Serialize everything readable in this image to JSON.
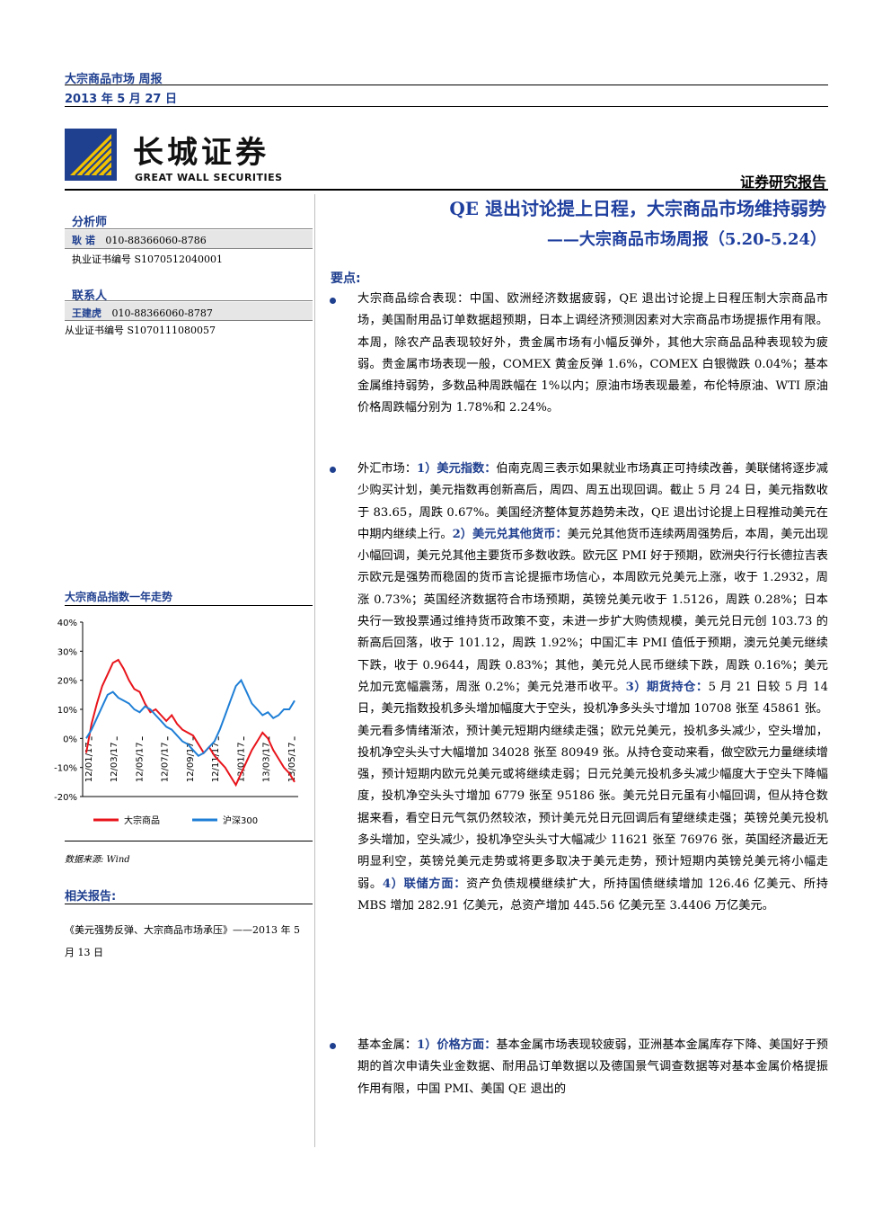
{
  "header": {
    "title": "大宗商品市场  周报",
    "date": "2013 年 5 月 27 日"
  },
  "logo": {
    "cn": "长城证券",
    "en": "GREAT WALL SECURITIES"
  },
  "report_type": "证券研究报告",
  "title": {
    "main": "QE 退出讨论提上日程，大宗商品市场维持弱势",
    "sub": "——大宗商品市场周报（5.20-5.24）"
  },
  "sidebar": {
    "analyst_label": "分析师",
    "analyst_name": "耿  诺",
    "analyst_phone": "010-88366060-8786",
    "analyst_cert": "执业证书编号 S1070512040001",
    "contact_label": "联系人",
    "contact_name": "王建虎",
    "contact_phone": "010-88366060-8787",
    "contact_cert": "从业证书编号 S1070111080057",
    "chart_title": "大宗商品指数一年走势",
    "data_source": "数据来源: Wind",
    "related_label": "相关报告:",
    "related_text": "《美元强势反弹、大宗商品市场承压》——2013 年 5 月 13 日"
  },
  "chart_data": {
    "type": "line",
    "title": "大宗商品指数一年走势",
    "x_ticks": [
      "12/01/17",
      "12/03/17",
      "12/05/17",
      "12/07/17",
      "12/09/17",
      "12/11/17",
      "13/01/17",
      "13/03/17",
      "13/05/17"
    ],
    "y_ticks": [
      "40%",
      "30%",
      "20%",
      "10%",
      "0%",
      "-10%",
      "-20%"
    ],
    "ylim": [
      -20,
      40
    ],
    "legend_position": "bottom",
    "series": [
      {
        "name": "大宗商品",
        "color": "#e8141b",
        "values": [
          -5,
          5,
          12,
          18,
          22,
          26,
          27,
          24,
          20,
          17,
          16,
          12,
          9,
          10,
          8,
          6,
          8,
          5,
          3,
          2,
          1,
          -2,
          -5,
          -3,
          -6,
          -8,
          -10,
          -13,
          -16,
          -12,
          -8,
          -4,
          -1,
          2,
          0,
          -4,
          -7,
          -10,
          -12,
          -15
        ]
      },
      {
        "name": "沪深300",
        "color": "#1f7fd6",
        "values": [
          0,
          3,
          7,
          11,
          15,
          16,
          14,
          13,
          12,
          10,
          9,
          11,
          10,
          8,
          6,
          4,
          3,
          1,
          -1,
          -2,
          -4,
          -6,
          -5,
          -3,
          -1,
          3,
          8,
          13,
          18,
          20,
          16,
          12,
          10,
          8,
          9,
          7,
          8,
          10,
          10,
          13
        ]
      }
    ]
  },
  "keypoints_label": "要点:",
  "paragraphs": {
    "p1": "大宗商品综合表现：中国、欧洲经济数据疲弱，QE 退出讨论提上日程压制大宗商品市场，美国耐用品订单数据超预期，日本上调经济预测因素对大宗商品市场提振作用有限。本周，除农产品表现较好外，贵金属市场有小幅反弹外，其他大宗商品品种表现较为疲弱。贵金属市场表现一般，COMEX 黄金反弹 1.6%，COMEX 白银微跌 0.04%；基本金属维持弱势，多数品种周跌幅在 1%以内；原油市场表现最差，布伦特原油、WTI 原油价格周跌幅分别为 1.78%和 2.24%。",
    "p2_a": "外汇市场：",
    "p2_b": "1）美元指数：",
    "p2_c": "伯南克周三表示如果就业市场真正可持续改善，美联储将逐步减少购买计划，美元指数再创新高后，周四、周五出现回调。截止 5 月 24 日，美元指数收于 83.65，周跌 0.67%。美国经济整体复苏趋势未改，QE 退出讨论提上日程推动美元在中期内继续上行。",
    "p2_d": "2）美元兑其他货币：",
    "p2_e": "美元兑其他货币连续两周强势后，本周，美元出现小幅回调，美元兑其他主要货币多数收跌。欧元区 PMI 好于预期，欧洲央行行长德拉吉表示欧元是强势而稳固的货币言论提振市场信心，本周欧元兑美元上涨，收于 1.2932，周涨 0.73%；英国经济数据符合市场预期，英镑兑美元收于 1.5126，周跌 0.28%；日本央行一致投票通过维持货币政策不变，未进一步扩大购债规模，美元兑日元创 103.73 的新高后回落，收于 101.12，周跌 1.92%；中国汇丰 PMI 值低于预期，澳元兑美元继续下跌，收于 0.9644，周跌 0.83%；其他，美元兑人民币继续下跌，周跌 0.16%；美元兑加元宽幅震荡，周涨 0.2%；美元兑港币收平。",
    "p2_f": "3）期货持仓：",
    "p2_g": "5 月 21 日较 5 月 14 日，美元指数投机多头增加幅度大于空头，投机净多头头寸增加 10708 张至 45861 张。美元看多情绪渐浓，预计美元短期内继续走强；欧元兑美元，投机多头减少，空头增加，投机净空头头寸大幅增加 34028 张至 80949 张。从持仓变动来看，做空欧元力量继续增强，预计短期内欧元兑美元或将继续走弱；日元兑美元投机多头减少幅度大于空头下降幅度，投机净空头头寸增加 6779 张至 95186 张。美元兑日元虽有小幅回调，但从持仓数据来看，看空日元气氛仍然较浓，预计美元兑日元回调后有望继续走强；英镑兑美元投机多头增加，空头减少，投机净空头头寸大幅减少 11621 张至 76976 张，英国经济最近无明显利空，英镑兑美元走势或将更多取决于美元走势，预计短期内英镑兑美元将小幅走弱。",
    "p2_h": "4）联储方面：",
    "p2_i": "资产负债规模继续扩大，所持国债继续增加 126.46 亿美元、所持 MBS 增加 282.91 亿美元，总资产增加 445.56 亿美元至 3.4406 万亿美元。",
    "p3_a": "基本金属：",
    "p3_b": "1）价格方面：",
    "p3_c": "基本金属市场表现较疲弱，亚洲基本金属库存下降、美国好于预期的首次申请失业金数据、耐用品订单数据以及德国景气调查数据等对基本金属价格提振作用有限，中国 PMI、美国 QE 退出的"
  }
}
